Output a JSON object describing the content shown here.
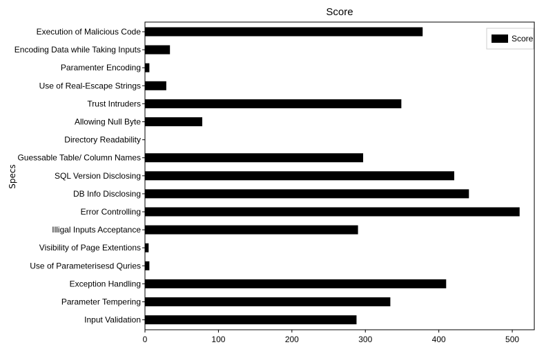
{
  "chart_data": {
    "type": "bar",
    "orientation": "horizontal",
    "title": "Score",
    "xlabel": "",
    "ylabel": "Specs",
    "categories": [
      "Execution of Malicious Code",
      "Encoding Data while Taking Inputs",
      "Paramenter Encoding",
      "Use of Real-Escape Strings",
      "Trust Intruders",
      "Allowing Null Byte",
      "Directory Readability",
      "Guessable Table/ Column Names",
      "SQL Version Disclosing",
      "DB Info Disclosing",
      "Error Controlling",
      "Illigal Inputs Acceptance",
      "Visibility of Page Extentions",
      "Use of Parameterisesd Quries",
      "Exception Handling",
      "Parameter Tempering",
      "Input Validation"
    ],
    "series": [
      {
        "name": "Score",
        "color": "#000000",
        "values": [
          378,
          34,
          6,
          29,
          349,
          78,
          0,
          297,
          421,
          441,
          510,
          290,
          5,
          6,
          410,
          334,
          288
        ]
      }
    ],
    "xlim": [
      0,
      530
    ],
    "xticks": [
      0,
      100,
      200,
      300,
      400,
      500
    ],
    "legend": "top-right",
    "grid": false
  }
}
